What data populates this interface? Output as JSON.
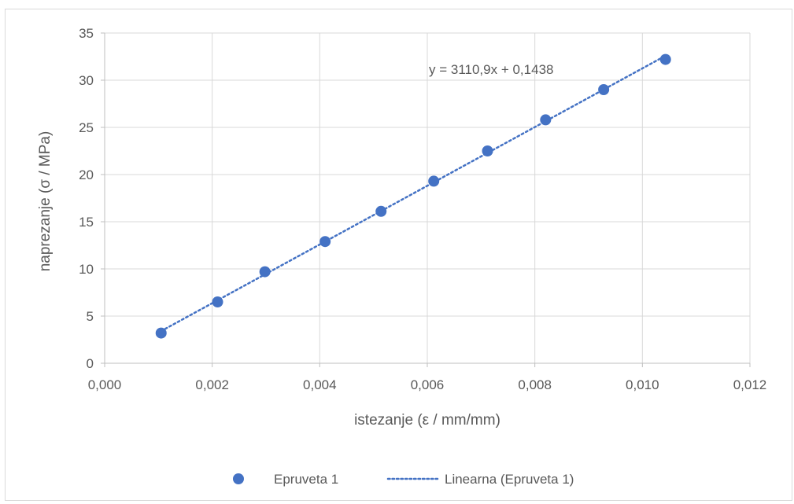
{
  "chart_data": {
    "type": "scatter",
    "title": "",
    "xlabel": "istezanje (ε / mm/mm)",
    "ylabel": "naprezanje (σ / MPa)",
    "xlim": [
      0,
      0.012
    ],
    "ylim": [
      0,
      35
    ],
    "xticks": [
      0,
      0.002,
      0.004,
      0.006,
      0.008,
      0.01,
      0.012
    ],
    "xtick_labels": [
      "0,000",
      "0,002",
      "0,004",
      "0,006",
      "0,008",
      "0,010",
      "0,012"
    ],
    "yticks": [
      0,
      5,
      10,
      15,
      20,
      25,
      30,
      35
    ],
    "ytick_labels": [
      "0",
      "5",
      "10",
      "15",
      "20",
      "25",
      "30",
      "35"
    ],
    "grid": true,
    "legend_position": "bottom",
    "series": [
      {
        "name": "Epruveta 1",
        "marker_color": "#4472c4",
        "points": [
          {
            "x": 0.00105,
            "y": 3.2
          },
          {
            "x": 0.0021,
            "y": 6.5
          },
          {
            "x": 0.00298,
            "y": 9.7
          },
          {
            "x": 0.0041,
            "y": 12.9
          },
          {
            "x": 0.00514,
            "y": 16.1
          },
          {
            "x": 0.00612,
            "y": 19.3
          },
          {
            "x": 0.00712,
            "y": 22.5
          },
          {
            "x": 0.0082,
            "y": 25.8
          },
          {
            "x": 0.00928,
            "y": 29.0
          },
          {
            "x": 0.01043,
            "y": 32.2
          }
        ]
      }
    ],
    "trendline": {
      "name": "Linearna (Epruveta 1)",
      "type": "linear",
      "slope": 3110.9,
      "intercept": 0.1438,
      "x_range": [
        0.00105,
        0.01043
      ],
      "equation_label": "y = 3110,9x + 0,1438",
      "color": "#4472c4",
      "style": "dotted"
    }
  }
}
